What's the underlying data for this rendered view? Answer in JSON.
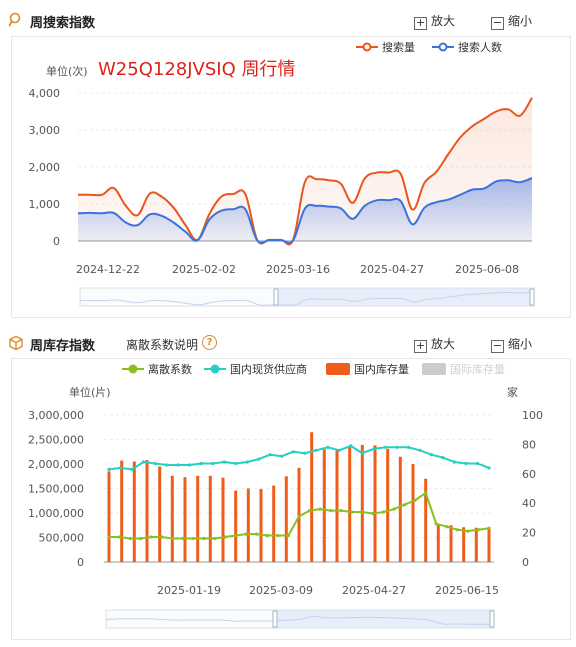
{
  "search_section": {
    "title": "周搜索指数",
    "zoom_in_label": "放大",
    "zoom_out_label": "缩小",
    "chart_title": "W25Q128JVSIQ 周行情",
    "unit_label": "单位(次)"
  },
  "inventory_section": {
    "title": "周库存指数",
    "help_link": "离散系数说明",
    "help_mark": "?",
    "zoom_in_label": "放大",
    "zoom_out_label": "缩小",
    "unit_left": "单位(片)",
    "unit_right": "家"
  },
  "colors": {
    "search_volume": "#e8561e",
    "search_people": "#3b72e0",
    "dispersion": "#8bbf1e",
    "suppliers": "#26cfc0",
    "domestic_stock": "#f25c19",
    "intl_stock": "#cccccc",
    "accent_icon": "#e08a2e"
  },
  "chart_data": [
    {
      "type": "area",
      "title": "W25Q128JVSIQ 周行情",
      "ylabel": "单位(次)",
      "ylim": [
        0,
        4000
      ],
      "yticks": [
        "0",
        "1,000",
        "2,000",
        "3,000",
        "4,000"
      ],
      "xticks": [
        "2024-12-22",
        "2025-02-02",
        "2025-03-16",
        "2025-04-27",
        "2025-06-08"
      ],
      "legend_position": "top-right",
      "grid": true,
      "series": [
        {
          "name": "搜索量",
          "values": [
            1250,
            1250,
            1250,
            1430,
            950,
            700,
            1280,
            1200,
            900,
            430,
            30,
            730,
            1200,
            1270,
            1270,
            30,
            30,
            30,
            30,
            1600,
            1670,
            1640,
            1550,
            1030,
            1690,
            1850,
            1850,
            1820,
            850,
            1570,
            1870,
            2350,
            2800,
            3100,
            3300,
            3500,
            3560,
            3390,
            3870
          ]
        },
        {
          "name": "搜索人数",
          "values": [
            750,
            760,
            750,
            760,
            500,
            430,
            720,
            680,
            500,
            250,
            20,
            580,
            820,
            860,
            860,
            20,
            20,
            20,
            20,
            880,
            950,
            930,
            880,
            600,
            950,
            1100,
            1100,
            1080,
            450,
            900,
            1050,
            1120,
            1250,
            1390,
            1420,
            1610,
            1640,
            1590,
            1700
          ]
        }
      ]
    },
    {
      "type": "bar",
      "ylabel": "单位(片)",
      "ylim": [
        0,
        3000000
      ],
      "y2label": "家",
      "y2lim": [
        0,
        100
      ],
      "yticks": [
        "0",
        "500,000",
        "1,000,000",
        "1,500,000",
        "2,000,000",
        "2,500,000",
        "3,000,000"
      ],
      "y2ticks": [
        "0",
        "20",
        "40",
        "60",
        "80",
        "100"
      ],
      "xticks": [
        "2025-01-19",
        "2025-03-09",
        "2025-04-27",
        "2025-06-15"
      ],
      "legend_position": "top",
      "grid": true,
      "series": [
        {
          "name": "离散系数",
          "type": "line",
          "axis": "right",
          "values": [
            17,
            17,
            16,
            16,
            17,
            17,
            16,
            16,
            16,
            16,
            16,
            17,
            18,
            19,
            19,
            18,
            18,
            18,
            31,
            35,
            36,
            35,
            35,
            34,
            34,
            33,
            34,
            36,
            39,
            42,
            47,
            26,
            24,
            22,
            21,
            22,
            23
          ]
        },
        {
          "name": "国内现货供应商",
          "type": "line",
          "axis": "right",
          "values": [
            63,
            64,
            63,
            68,
            67,
            66,
            66,
            66,
            67,
            67,
            68,
            67,
            68,
            70,
            73,
            72,
            75,
            74,
            76,
            78,
            76,
            79,
            74,
            77,
            78,
            78,
            78,
            76,
            73,
            71,
            68,
            67,
            67,
            64
          ]
        },
        {
          "name": "国内库存量",
          "type": "bar",
          "axis": "left",
          "values": [
            1850000,
            2070000,
            2050000,
            2080000,
            1950000,
            1760000,
            1730000,
            1760000,
            1760000,
            1720000,
            1460000,
            1500000,
            1490000,
            1560000,
            1750000,
            1920000,
            2650000,
            2300000,
            2280000,
            2350000,
            2390000,
            2380000,
            2310000,
            2150000,
            2000000,
            1700000,
            780000,
            750000,
            710000,
            700000,
            700000
          ]
        },
        {
          "name": "国际库存量",
          "type": "bar",
          "axis": "left",
          "values": []
        }
      ]
    }
  ]
}
